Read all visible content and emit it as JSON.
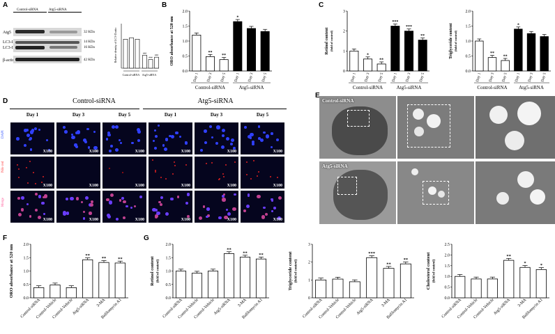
{
  "panels": {
    "A": "A",
    "B": "B",
    "C": "C",
    "D": "D",
    "E": "E",
    "F": "F",
    "G": "G"
  },
  "panelA": {
    "groups": [
      "Control-siRNA",
      "Atg5-siRNA"
    ],
    "rows": [
      {
        "name": "Atg5",
        "kda": "32 KDa"
      },
      {
        "name": "LC3-I",
        "kda": "14 KDa"
      },
      {
        "name": "LC3-II",
        "kda": "16 KDa"
      },
      {
        "name": "β-actin",
        "kda": "42 KDa"
      }
    ],
    "chart_ylabel": "Relative density of LC3-II ratio",
    "chart_values": [
      1.0,
      1.05,
      1.0,
      0.45,
      0.3,
      0.38
    ],
    "chart_sig": [
      "",
      "",
      "",
      "###",
      "###",
      "###"
    ],
    "chart_groups": [
      "Control-siRNA",
      "Atg5-siRNA"
    ]
  },
  "chart_data": [
    {
      "type": "bar",
      "panel": "B",
      "ylabel": "ORO absorbance at 520 nm",
      "ylim": [
        0,
        2.0
      ],
      "yticks": [
        "0.0",
        "0.5",
        "1.0",
        "1.5",
        "2.0"
      ],
      "categories": [
        "Day 1",
        "Day 3",
        "Day 5",
        "Day 1",
        "Day 3",
        "Day 5"
      ],
      "values": [
        1.2,
        0.48,
        0.38,
        1.65,
        1.42,
        1.32
      ],
      "sig": [
        "",
        "**",
        "**",
        "*",
        "",
        ""
      ],
      "groups": [
        "Control-siRNA",
        "Atg5-siRNA"
      ]
    },
    {
      "type": "bar",
      "panel": "C1",
      "ylabel": "Retinol content",
      "ylabel2": "(fold of control)",
      "ylim": [
        0,
        3
      ],
      "yticks": [
        "0",
        "1",
        "2",
        "3"
      ],
      "categories": [
        "Day 1",
        "Day 3",
        "Day 5",
        "Day 1",
        "Day 3",
        "Day 5"
      ],
      "values": [
        1.0,
        0.6,
        0.35,
        2.25,
        2.0,
        1.55
      ],
      "sig": [
        "",
        "*",
        "**",
        "***",
        "***",
        "**"
      ],
      "groups": [
        "Control-siRNA",
        "Atg5-siRNA"
      ]
    },
    {
      "type": "bar",
      "panel": "C2",
      "ylabel": "Triglyceride content",
      "ylabel2": "(fold of control)",
      "ylim": [
        0,
        2.0
      ],
      "yticks": [
        "0.0",
        "0.5",
        "1.0",
        "1.5",
        "2.0"
      ],
      "categories": [
        "Day 1",
        "Day 3",
        "Day 5",
        "Day 1",
        "Day 3",
        "Day 5"
      ],
      "values": [
        1.0,
        0.45,
        0.35,
        1.4,
        1.25,
        1.15
      ],
      "sig": [
        "",
        "**",
        "**",
        "*",
        "",
        ""
      ],
      "groups": [
        "Control-siRNA",
        "Atg5-siRNA"
      ]
    },
    {
      "type": "bar",
      "panel": "F",
      "ylabel": "ORO absorbance at 520 nm",
      "ylim": [
        0,
        2.0
      ],
      "yticks": [
        "0.0",
        "0.5",
        "1.0",
        "1.5",
        "2.0"
      ],
      "categories": [
        "Control-siRNA",
        "Control-Vehicle",
        "Control-Vehicle",
        "Atg5-siRNA",
        "3-MA",
        "Bafilomycin A1"
      ],
      "values": [
        0.38,
        0.48,
        0.38,
        1.42,
        1.32,
        1.3
      ],
      "sig": [
        "",
        "",
        "",
        "**",
        "**",
        "**"
      ]
    },
    {
      "type": "bar",
      "panel": "G1",
      "ylabel": "Retinol content",
      "ylabel2": "(fold of control)",
      "ylim": [
        0,
        2.0
      ],
      "yticks": [
        "0.0",
        "0.5",
        "1.0",
        "1.5",
        "2.0"
      ],
      "categories": [
        "Control-siRNA",
        "Control-Vehicle",
        "Control-Vehicle",
        "Atg5-siRNA",
        "3-MA",
        "Bafilomycin A1"
      ],
      "values": [
        1.0,
        0.92,
        1.0,
        1.65,
        1.52,
        1.45
      ],
      "sig": [
        "",
        "",
        "",
        "**",
        "**",
        "**"
      ]
    },
    {
      "type": "bar",
      "panel": "G2",
      "ylabel": "Triglyceride content",
      "ylabel2": "(fold of control)",
      "ylim": [
        0,
        3
      ],
      "yticks": [
        "0",
        "1",
        "2",
        "3"
      ],
      "categories": [
        "Control-siRNA",
        "Control-Vehicle",
        "Control-Vehicle",
        "Atg5-siRNA",
        "3-MA",
        "Bafilomycin A1"
      ],
      "values": [
        1.0,
        1.05,
        0.9,
        2.25,
        1.65,
        1.9
      ],
      "sig": [
        "",
        "",
        "",
        "***",
        "**",
        "**"
      ]
    },
    {
      "type": "bar",
      "panel": "G3",
      "ylabel": "Cholesterol content",
      "ylabel2": "(fold of control)",
      "ylim": [
        0,
        2.5
      ],
      "yticks": [
        "0.0",
        "0.5",
        "1.0",
        "1.5",
        "2.0",
        "2.5"
      ],
      "categories": [
        "Control-siRNA",
        "Control-Vehicle",
        "Control-Vehicle",
        "Atg5-siRNA",
        "3-MA",
        "Bafilomycin A1"
      ],
      "values": [
        1.0,
        0.88,
        0.88,
        1.75,
        1.42,
        1.32
      ],
      "sig": [
        "",
        "",
        "",
        "**",
        "*",
        "*"
      ]
    }
  ],
  "panelD": {
    "groups": [
      "Control-siRNA",
      "Atg5-siRNA"
    ],
    "days": [
      "Day 1",
      "Day 3",
      "Day 5",
      "Day 1",
      "Day 3",
      "Day 5"
    ],
    "rows": [
      "DAPI",
      "Nile red",
      "Merge"
    ],
    "magnification": "X100"
  },
  "panelE": {
    "top_label": "Control-siRNA",
    "bottom_label": "Atg5-siRNA"
  }
}
